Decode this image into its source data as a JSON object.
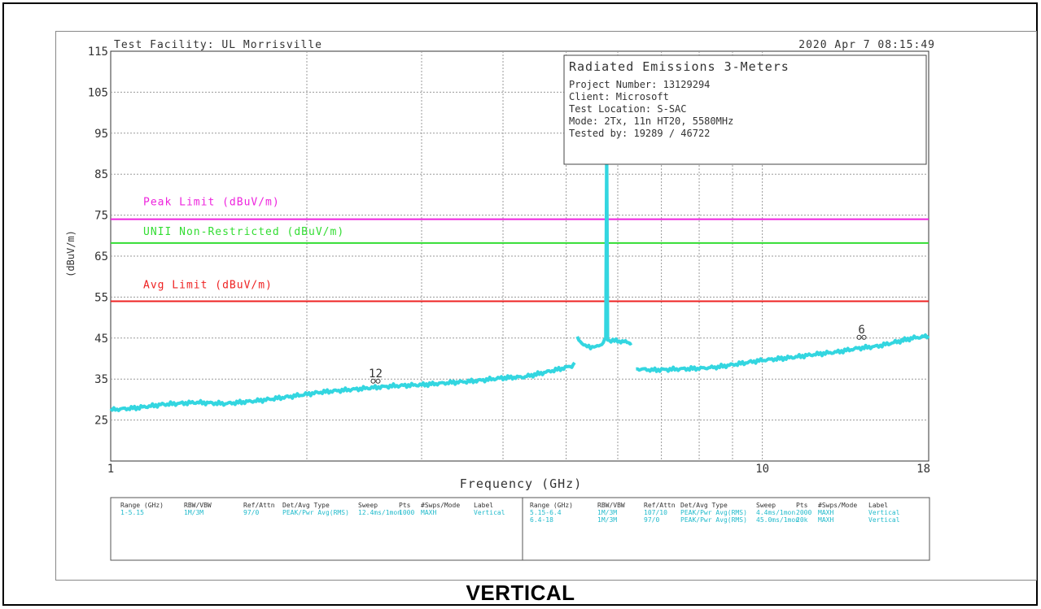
{
  "header": {
    "facility": "Test Facility:  UL Morrisville",
    "datetime": "2020 Apr 7   08:15:49"
  },
  "info_box": {
    "title": "Radiated Emissions 3-Meters",
    "lines": [
      "Project Number: 13129294",
      "Client: Microsoft",
      "Test Location: S-SAC",
      "Mode: 2Tx, 11n HT20, 5580MHz",
      "Tested by: 19289 / 46722"
    ]
  },
  "caption": "VERTICAL",
  "colors": {
    "trace": "#33d6e0",
    "peak_limit": "#ee22dd",
    "unii_limit": "#33dd33",
    "avg_limit": "#ee2222",
    "grid": "#9a9a9a",
    "table_text": "#22bbcc"
  },
  "chart_data": {
    "type": "line",
    "xlabel": "Frequency (GHz)",
    "ylabel": "(dBuV/m)",
    "x_scale": "log",
    "xlim": [
      1,
      18
    ],
    "ylim": [
      15,
      115
    ],
    "x_tick_labels": [
      {
        "x": 1,
        "label": "1"
      },
      {
        "x": 10,
        "label": "10"
      },
      {
        "x": 18,
        "label": "18"
      }
    ],
    "x_grid": [
      2,
      3,
      4,
      5,
      6,
      7,
      8,
      9,
      10
    ],
    "y_ticks": [
      25,
      35,
      45,
      55,
      65,
      75,
      85,
      95,
      105,
      115
    ],
    "grid": true,
    "limits": [
      {
        "name": "Peak Limit (dBuV/m)",
        "value": 74,
        "color_key": "peak_limit"
      },
      {
        "name": "UNII Non-Restricted (dBuV/m)",
        "value": 68.2,
        "color_key": "unii_limit"
      },
      {
        "name": "Avg Limit (dBuV/m)",
        "value": 54,
        "color_key": "avg_limit"
      }
    ],
    "series": [
      {
        "segments": [
          [
            [
              1.0,
              27.5
            ],
            [
              1.1,
              28.0
            ],
            [
              1.2,
              28.8
            ],
            [
              1.35,
              29.3
            ],
            [
              1.5,
              29.0
            ],
            [
              1.7,
              29.8
            ],
            [
              1.9,
              30.8
            ],
            [
              2.1,
              31.8
            ],
            [
              2.4,
              32.6
            ],
            [
              2.7,
              33.3
            ],
            [
              3.0,
              33.6
            ],
            [
              3.3,
              34.1
            ],
            [
              3.6,
              34.5
            ],
            [
              4.0,
              35.3
            ],
            [
              4.3,
              35.5
            ],
            [
              4.6,
              36.5
            ],
            [
              4.9,
              37.5
            ],
            [
              5.1,
              38.2
            ],
            [
              5.15,
              39.0
            ]
          ],
          [
            [
              5.2,
              45.0
            ],
            [
              5.35,
              43.0
            ],
            [
              5.55,
              42.8
            ],
            [
              5.7,
              43.8
            ],
            [
              5.75,
              45.0
            ],
            [
              5.77,
              92.0
            ],
            [
              5.79,
              44.5
            ],
            [
              6.0,
              44.3
            ],
            [
              6.2,
              44.0
            ],
            [
              6.3,
              43.8
            ]
          ],
          [
            [
              6.4,
              37.5
            ],
            [
              6.8,
              37.2
            ],
            [
              7.3,
              37.4
            ],
            [
              8.0,
              37.6
            ],
            [
              8.5,
              37.9
            ],
            [
              9.0,
              38.5
            ],
            [
              10.0,
              39.6
            ],
            [
              11.0,
              40.2
            ],
            [
              12.0,
              41.0
            ],
            [
              13.0,
              41.6
            ],
            [
              14.0,
              42.5
            ],
            [
              15.0,
              43.0
            ],
            [
              16.0,
              44.0
            ],
            [
              17.0,
              45.0
            ],
            [
              18.0,
              45.5
            ]
          ]
        ]
      }
    ],
    "markers": [
      {
        "label": "12",
        "x": 2.55,
        "y": 33.5
      },
      {
        "label": "6",
        "x": 14.2,
        "y": 44.2
      }
    ]
  },
  "settings_table": {
    "left": {
      "headers": [
        "Range (GHz)",
        "RBW/VBW",
        "Ref/Attn",
        "Det/Avg Type",
        "Sweep",
        "Pts",
        "#Swps/Mode",
        "Label"
      ],
      "rows": [
        [
          "1-5.15",
          "1M/3M",
          "97/0",
          "PEAK/Pwr Avg(RMS)",
          "12.4ms/1mon",
          "1000",
          "MAXH",
          "Vertical"
        ]
      ]
    },
    "right": {
      "headers": [
        "Range (GHz)",
        "RBW/VBW",
        "Ref/Attn",
        "Det/Avg Type",
        "Sweep",
        "Pts",
        "#Swps/Mode",
        "Label"
      ],
      "rows": [
        [
          "5.15-6.4",
          "1M/3M",
          "107/10",
          "PEAK/Pwr Avg(RMS)",
          "4.4ms/1mon",
          "2000",
          "MAXH",
          "Vertical"
        ],
        [
          "6.4-18",
          "1M/3M",
          "97/0",
          "PEAK/Pwr Avg(RMS)",
          "45.0ms/1mon",
          "20k",
          "MAXH",
          "Vertical"
        ]
      ]
    }
  }
}
